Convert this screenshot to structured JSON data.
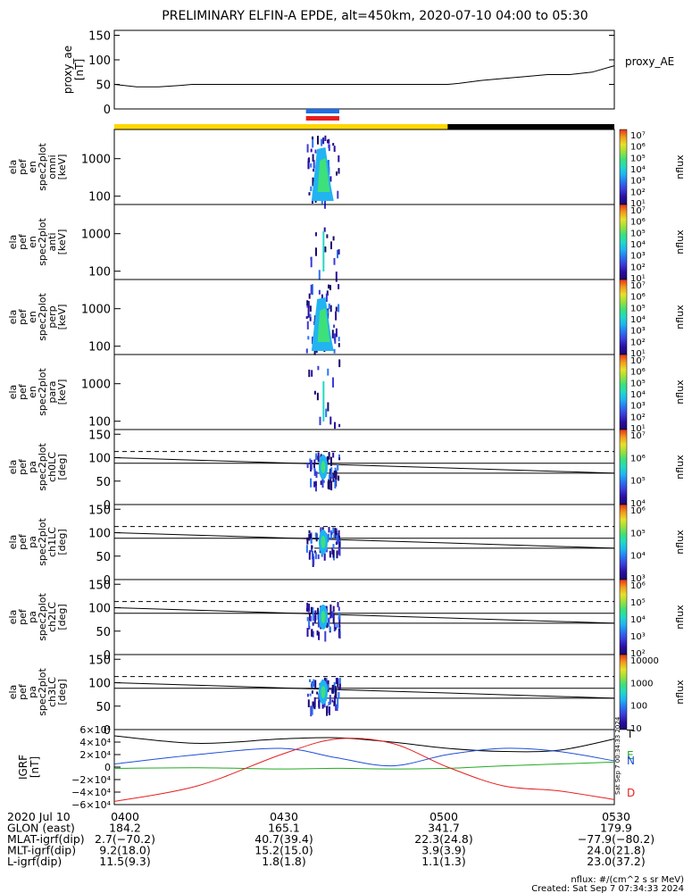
{
  "title": "PRELIMINARY ELFIN-A EPDE, alt=450km, 2020-07-10 04:00 to 05:30",
  "colors": {
    "yellow": "#ffd700",
    "black": "#000000",
    "blue": "#1e6fe6",
    "red": "#e61e1e"
  },
  "proxy_ae": {
    "ylabel": [
      "proxy_ae",
      "[nT]"
    ],
    "label": "proxy_AE",
    "yticks": [
      "150",
      "100",
      "50",
      "0"
    ]
  },
  "colorscale_ticks": {
    "p1": [
      "10⁷",
      "10⁶",
      "10⁵",
      "10⁴",
      "10³",
      "10²",
      "10¹"
    ],
    "p2": [
      "10⁷",
      "10⁶",
      "10⁵",
      "10⁴",
      "10³",
      "10²",
      "10¹"
    ],
    "p3": [
      "10⁷",
      "10⁶",
      "10⁵",
      "10⁴",
      "10³",
      "10²",
      "10¹"
    ],
    "p4": [
      "10⁷",
      "10⁶",
      "10⁵",
      "10⁴",
      "10³",
      "10²",
      "10¹"
    ],
    "p5": [
      "10⁷",
      "10⁶",
      "10⁵",
      "10⁴"
    ],
    "p6": [
      "10⁶",
      "10⁵",
      "10⁴",
      "10³"
    ],
    "p7": [
      "10⁶",
      "10⁵",
      "10⁴",
      "10³",
      "10²"
    ],
    "p8": [
      "10000",
      "1000",
      "100",
      "10"
    ]
  },
  "nflux_label": "nflux",
  "panels": [
    {
      "ylabel": [
        "ela",
        "pef",
        "en",
        "spec2plot",
        "omni",
        "[keV]"
      ],
      "yticks": [
        "1000",
        "100"
      ]
    },
    {
      "ylabel": [
        "ela",
        "pef",
        "en",
        "spec2plot",
        "anti",
        "[keV]"
      ],
      "yticks": [
        "1000",
        "100"
      ]
    },
    {
      "ylabel": [
        "ela",
        "pef",
        "en",
        "spec2plot",
        "perp",
        "[keV]"
      ],
      "yticks": [
        "1000",
        "100"
      ]
    },
    {
      "ylabel": [
        "ela",
        "pef",
        "en",
        "spec2plot",
        "para",
        "[keV]"
      ],
      "yticks": [
        "1000",
        "100"
      ]
    },
    {
      "ylabel": [
        "ela",
        "pef",
        "pa",
        "spec2plot",
        "ch0LC",
        "[deg]"
      ],
      "yticks": [
        "150",
        "100",
        "50",
        "0"
      ]
    },
    {
      "ylabel": [
        "ela",
        "pef",
        "pa",
        "spec2plot",
        "ch1LC",
        "[deg]"
      ],
      "yticks": [
        "150",
        "100",
        "50",
        "0"
      ]
    },
    {
      "ylabel": [
        "ela",
        "pef",
        "pa",
        "spec2plot",
        "ch2LC",
        "[deg]"
      ],
      "yticks": [
        "150",
        "100",
        "50",
        "0"
      ]
    },
    {
      "ylabel": [
        "ela",
        "pef",
        "pa",
        "spec2plot",
        "ch3LC",
        "[deg]"
      ],
      "yticks": [
        "150",
        "100",
        "50",
        "0"
      ]
    }
  ],
  "igrf": {
    "ylabel": [
      "IGRF",
      "[nT]"
    ],
    "yticks": [
      "6×10⁴",
      "4×10⁴",
      "2×10⁴",
      "0",
      "−2×10⁴",
      "−4×10⁴",
      "−6×10⁴"
    ],
    "legend": [
      "T",
      "E",
      "N",
      "D"
    ],
    "legend_colors": [
      "#000000",
      "#22aa22",
      "#1e4fd8",
      "#e61e1e"
    ],
    "side_text": "Sat Sep  7 00:34:33 2024"
  },
  "footer": {
    "rows": [
      [
        "2020 Jul 10",
        "0400",
        "0430",
        "0500",
        "0530"
      ],
      [
        "GLON (east)",
        "184.2",
        "165.1",
        "341.7",
        "179.9"
      ],
      [
        "MLAT-igrf(dip)",
        "2.7(−70.2)",
        "40.7(39.4)",
        "22.3(24.8)",
        "−77.9(−80.2)"
      ],
      [
        "MLT-igrf(dip)",
        "9.2(18.0)",
        "15.2(15.0)",
        "3.9(3.9)",
        "24.0(21.8)"
      ],
      [
        "L-igrf(dip)",
        "11.5(9.3)",
        "1.8(1.8)",
        "1.1(1.3)",
        "23.0(37.2)"
      ]
    ],
    "units_note": "nflux: #/(cm^2 s sr MeV)",
    "created": "Created: Sat Sep  7 07:34:33 2024"
  },
  "chart_data": [
    {
      "type": "line",
      "name": "proxy_AE",
      "x_range": [
        "04:00",
        "05:30"
      ],
      "ylim": [
        0,
        160
      ],
      "x_minutes": [
        0,
        4,
        8,
        12,
        14,
        20,
        40,
        60,
        62,
        66,
        70,
        74,
        78,
        82,
        86,
        90
      ],
      "y": [
        50,
        45,
        45,
        48,
        50,
        50,
        50,
        50,
        52,
        58,
        62,
        66,
        70,
        70,
        75,
        88
      ]
    },
    {
      "type": "heatmap",
      "name": "spectrograms",
      "x_range": [
        "04:00",
        "05:30"
      ],
      "energy_ylim_keV": [
        60,
        6000
      ],
      "pitch_angle_ylim_deg": [
        0,
        160
      ],
      "science_zone_minutes": [
        34.5,
        40.5
      ],
      "loss_cone_lines_deg": {
        "dashed": 113,
        "upper": 88,
        "lower": 67
      }
    },
    {
      "type": "line",
      "name": "IGRF",
      "x_range": [
        "04:00",
        "05:30"
      ],
      "ylim": [
        -60000,
        60000
      ],
      "x_minutes": [
        0,
        15,
        30,
        40,
        50,
        60,
        70,
        80,
        90
      ],
      "series": [
        {
          "name": "T",
          "values": [
            50000,
            38000,
            45000,
            47000,
            40000,
            30000,
            25000,
            27000,
            45000
          ]
        },
        {
          "name": "E",
          "values": [
            -2000,
            -1000,
            -3000,
            -2000,
            -3000,
            -2000,
            2000,
            5000,
            8000
          ]
        },
        {
          "name": "N",
          "values": [
            5000,
            20000,
            30000,
            15000,
            2000,
            20000,
            30000,
            25000,
            10000
          ]
        },
        {
          "name": "D",
          "values": [
            -55000,
            -30000,
            20000,
            45000,
            38000,
            0,
            -30000,
            -38000,
            -52000
          ]
        }
      ]
    }
  ]
}
